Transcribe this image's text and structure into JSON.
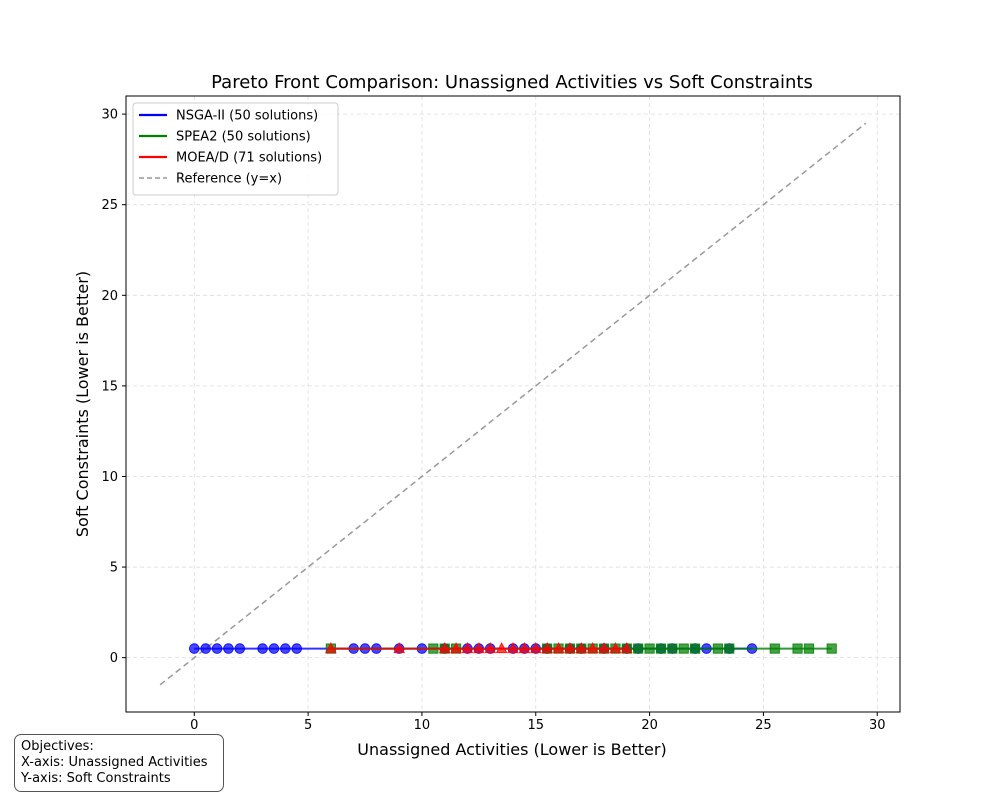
{
  "chart_data": {
    "type": "scatter",
    "title": "Pareto Front Comparison: Unassigned Activities vs Soft Constraints",
    "xlabel": "Unassigned Activities (Lower is Better)",
    "ylabel": "Soft Constraints (Lower is Better)",
    "xlim": [
      -3,
      31
    ],
    "ylim": [
      -3,
      31
    ],
    "xticks": [
      0,
      5,
      10,
      15,
      20,
      25,
      30
    ],
    "yticks": [
      0,
      5,
      10,
      15,
      20,
      25,
      30
    ],
    "grid": true,
    "legend_position": "upper-left",
    "series": [
      {
        "name": "NSGA-II (50 solutions)",
        "color": "#0000ff",
        "marker": "circle",
        "x": [
          0,
          0.5,
          1,
          1.5,
          2,
          3,
          3.5,
          4,
          4.5,
          7,
          7.5,
          8,
          9,
          10,
          11,
          12,
          12.5,
          13,
          14,
          14.5,
          15,
          15.5,
          16.5,
          17,
          18,
          19,
          19.5,
          20.5,
          21,
          22,
          22.5,
          23.5,
          24.5
        ],
        "y": [
          0.5,
          0.5,
          0.5,
          0.5,
          0.5,
          0.5,
          0.5,
          0.5,
          0.5,
          0.5,
          0.5,
          0.5,
          0.5,
          0.5,
          0.5,
          0.5,
          0.5,
          0.5,
          0.5,
          0.5,
          0.5,
          0.5,
          0.5,
          0.5,
          0.5,
          0.5,
          0.5,
          0.5,
          0.5,
          0.5,
          0.5,
          0.5,
          0.5
        ]
      },
      {
        "name": "SPEA2 (50 solutions)",
        "color": "#008000",
        "marker": "square",
        "x": [
          6,
          10.5,
          11,
          11.5,
          15.5,
          16,
          16.5,
          17,
          17.5,
          18,
          18.5,
          19,
          19.5,
          20,
          20.5,
          21,
          21.5,
          22,
          23,
          23.5,
          25.5,
          26.5,
          27,
          28
        ],
        "y": [
          0.5,
          0.5,
          0.5,
          0.5,
          0.5,
          0.5,
          0.5,
          0.5,
          0.5,
          0.5,
          0.5,
          0.5,
          0.5,
          0.5,
          0.5,
          0.5,
          0.5,
          0.5,
          0.5,
          0.5,
          0.5,
          0.5,
          0.5,
          0.5
        ]
      },
      {
        "name": "MOEA/D (71 solutions)",
        "color": "#ff0000",
        "marker": "triangle",
        "x": [
          6,
          9,
          11,
          11.5,
          12,
          12.5,
          13,
          13.5,
          14,
          14.5,
          15,
          15.5,
          16,
          16.5,
          17,
          17.5,
          18,
          18.5,
          19
        ],
        "y": [
          0.5,
          0.5,
          0.5,
          0.5,
          0.5,
          0.5,
          0.5,
          0.5,
          0.5,
          0.5,
          0.5,
          0.5,
          0.5,
          0.5,
          0.5,
          0.5,
          0.5,
          0.5,
          0.5
        ]
      }
    ],
    "reference": {
      "name": "Reference (y=x)",
      "color": "#999999",
      "x": [
        -1.5,
        29.5
      ],
      "y": [
        -1.5,
        29.5
      ]
    }
  },
  "note": {
    "line1": "Objectives:",
    "line2": "X-axis: Unassigned Activities",
    "line3": "Y-axis: Soft Constraints"
  }
}
